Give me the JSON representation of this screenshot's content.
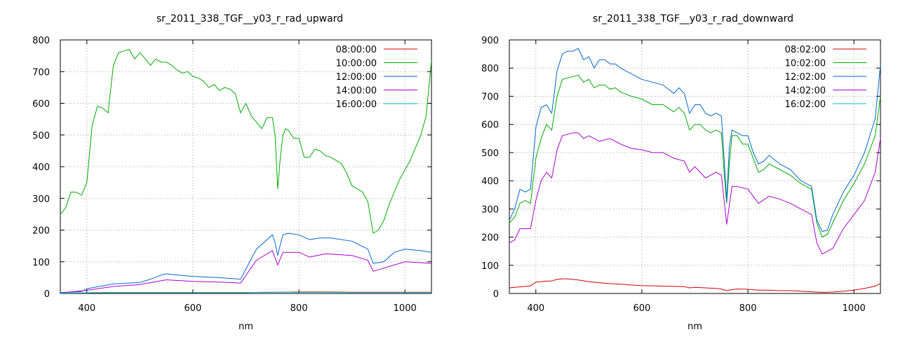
{
  "chart_data": [
    {
      "type": "line",
      "title": "sr_2011_338_TGF__y03_r_rad_upward",
      "xlabel": "nm",
      "ylabel": "",
      "xlim": [
        350,
        1050
      ],
      "ylim": [
        0,
        800
      ],
      "xticks": [
        400,
        600,
        800,
        1000
      ],
      "yticks": [
        0,
        100,
        200,
        300,
        400,
        500,
        600,
        700,
        800
      ],
      "grid": true,
      "legend_position": "top-right",
      "series": [
        {
          "name": "08:00:00",
          "color": "#cc0000",
          "x": [
            350,
            400,
            450,
            500,
            550,
            600,
            650,
            700,
            760,
            800,
            850,
            900,
            950,
            1000,
            1050
          ],
          "y": [
            1,
            2,
            3,
            3,
            3,
            3,
            3,
            3,
            4,
            5,
            5,
            4,
            4,
            4,
            4
          ]
        },
        {
          "name": "10:00:00",
          "color": "#00aa00",
          "x": [
            350,
            360,
            370,
            380,
            390,
            400,
            410,
            420,
            430,
            440,
            450,
            460,
            470,
            480,
            490,
            500,
            510,
            520,
            530,
            540,
            550,
            560,
            570,
            580,
            590,
            600,
            610,
            620,
            630,
            640,
            650,
            660,
            670,
            680,
            690,
            700,
            710,
            720,
            730,
            740,
            750,
            755,
            760,
            765,
            770,
            775,
            780,
            790,
            800,
            810,
            820,
            830,
            840,
            850,
            860,
            870,
            880,
            890,
            900,
            910,
            920,
            930,
            940,
            950,
            960,
            970,
            980,
            990,
            1000,
            1010,
            1020,
            1030,
            1040,
            1050
          ],
          "y": [
            250,
            270,
            320,
            320,
            310,
            350,
            530,
            590,
            585,
            570,
            720,
            760,
            765,
            770,
            740,
            760,
            740,
            720,
            740,
            730,
            730,
            720,
            705,
            695,
            700,
            685,
            680,
            670,
            650,
            660,
            640,
            650,
            645,
            630,
            570,
            600,
            560,
            540,
            520,
            555,
            555,
            500,
            330,
            430,
            500,
            520,
            515,
            490,
            490,
            430,
            430,
            455,
            450,
            435,
            430,
            420,
            410,
            380,
            340,
            330,
            320,
            290,
            190,
            200,
            230,
            280,
            320,
            360,
            390,
            420,
            460,
            500,
            560,
            735
          ]
        },
        {
          "name": "12:00:00",
          "color": "#0066cc",
          "x": [
            350,
            390,
            400,
            450,
            500,
            520,
            540,
            550,
            560,
            600,
            650,
            690,
            720,
            740,
            750,
            755,
            760,
            765,
            770,
            780,
            800,
            820,
            840,
            860,
            900,
            930,
            940,
            960,
            980,
            1000,
            1030,
            1050
          ],
          "y": [
            3,
            6,
            15,
            30,
            35,
            45,
            58,
            62,
            60,
            54,
            50,
            45,
            140,
            170,
            185,
            160,
            120,
            155,
            185,
            190,
            185,
            170,
            175,
            175,
            165,
            140,
            95,
            100,
            130,
            140,
            135,
            130
          ]
        },
        {
          "name": "14:00:00",
          "color": "#aa00cc",
          "x": [
            350,
            400,
            450,
            500,
            550,
            600,
            650,
            690,
            720,
            750,
            760,
            770,
            800,
            820,
            850,
            900,
            930,
            940,
            960,
            1000,
            1050
          ],
          "y": [
            2,
            10,
            22,
            28,
            43,
            38,
            36,
            33,
            105,
            135,
            90,
            130,
            130,
            115,
            125,
            120,
            105,
            70,
            80,
            100,
            95
          ]
        },
        {
          "name": "16:00:00",
          "color": "#00bbcc",
          "x": [
            350,
            400,
            450,
            500,
            550,
            600,
            650,
            700,
            750,
            800,
            850,
            900,
            950,
            1000,
            1050
          ],
          "y": [
            1,
            2,
            3,
            3,
            3,
            3,
            3,
            3,
            4,
            4,
            4,
            3,
            3,
            3,
            3
          ]
        }
      ]
    },
    {
      "type": "line",
      "title": "sr_2011_338_TGF__y03_r_rad_downward",
      "xlabel": "nm",
      "ylabel": "",
      "xlim": [
        350,
        1050
      ],
      "ylim": [
        0,
        900
      ],
      "xticks": [
        400,
        600,
        800,
        1000
      ],
      "yticks": [
        0,
        100,
        200,
        300,
        400,
        500,
        600,
        700,
        800,
        900
      ],
      "grid": true,
      "legend_position": "top-right",
      "series": [
        {
          "name": "08:02:00",
          "color": "#cc0000",
          "x": [
            350,
            360,
            380,
            390,
            400,
            410,
            420,
            430,
            440,
            450,
            460,
            470,
            480,
            500,
            520,
            540,
            560,
            580,
            600,
            620,
            640,
            660,
            680,
            690,
            700,
            720,
            740,
            750,
            760,
            770,
            780,
            800,
            820,
            840,
            860,
            880,
            900,
            920,
            930,
            940,
            960,
            980,
            1000,
            1020,
            1040,
            1050
          ],
          "y": [
            20,
            22,
            25,
            27,
            40,
            42,
            44,
            44,
            50,
            52,
            52,
            50,
            48,
            42,
            38,
            35,
            33,
            30,
            28,
            27,
            26,
            25,
            24,
            20,
            22,
            20,
            18,
            16,
            10,
            14,
            16,
            15,
            12,
            12,
            10,
            10,
            8,
            6,
            5,
            4,
            5,
            8,
            12,
            18,
            26,
            35
          ]
        },
        {
          "name": "10:02:00",
          "color": "#00aa00",
          "x": [
            350,
            360,
            370,
            380,
            390,
            400,
            410,
            420,
            430,
            440,
            450,
            460,
            470,
            480,
            490,
            500,
            510,
            520,
            530,
            540,
            550,
            560,
            580,
            600,
            620,
            640,
            660,
            670,
            680,
            690,
            700,
            710,
            720,
            730,
            740,
            750,
            755,
            760,
            765,
            770,
            780,
            790,
            800,
            810,
            820,
            830,
            840,
            860,
            880,
            900,
            920,
            930,
            940,
            950,
            960,
            980,
            1000,
            1020,
            1040,
            1050
          ],
          "y": [
            250,
            270,
            320,
            330,
            320,
            480,
            550,
            600,
            580,
            700,
            760,
            765,
            770,
            775,
            750,
            760,
            730,
            740,
            740,
            725,
            730,
            715,
            700,
            690,
            670,
            670,
            645,
            660,
            640,
            580,
            600,
            600,
            580,
            570,
            580,
            570,
            430,
            320,
            460,
            560,
            560,
            530,
            530,
            480,
            430,
            440,
            460,
            440,
            420,
            390,
            370,
            250,
            200,
            210,
            250,
            330,
            390,
            460,
            560,
            700
          ]
        },
        {
          "name": "12:02:00",
          "color": "#0066cc",
          "x": [
            350,
            360,
            370,
            380,
            390,
            400,
            410,
            420,
            430,
            440,
            450,
            460,
            470,
            480,
            490,
            500,
            510,
            520,
            530,
            540,
            550,
            560,
            580,
            600,
            620,
            640,
            660,
            670,
            680,
            690,
            700,
            710,
            720,
            730,
            740,
            750,
            755,
            760,
            765,
            770,
            780,
            790,
            800,
            810,
            820,
            830,
            840,
            860,
            880,
            900,
            920,
            930,
            940,
            950,
            960,
            980,
            1000,
            1020,
            1040,
            1050
          ],
          "y": [
            260,
            300,
            370,
            360,
            370,
            590,
            660,
            670,
            640,
            790,
            850,
            860,
            860,
            870,
            830,
            840,
            800,
            830,
            830,
            815,
            815,
            800,
            780,
            760,
            750,
            740,
            710,
            730,
            710,
            640,
            670,
            670,
            640,
            630,
            640,
            630,
            480,
            330,
            520,
            580,
            570,
            560,
            560,
            500,
            460,
            470,
            490,
            460,
            440,
            400,
            380,
            260,
            220,
            225,
            280,
            360,
            420,
            500,
            620,
            810
          ]
        },
        {
          "name": "14:02:00",
          "color": "#aa00cc",
          "x": [
            350,
            360,
            370,
            380,
            390,
            400,
            410,
            420,
            430,
            440,
            450,
            460,
            470,
            480,
            490,
            500,
            520,
            540,
            560,
            580,
            600,
            620,
            640,
            660,
            680,
            690,
            700,
            720,
            740,
            750,
            760,
            770,
            780,
            800,
            820,
            840,
            860,
            880,
            900,
            920,
            930,
            940,
            960,
            980,
            1000,
            1020,
            1040,
            1050
          ],
          "y": [
            180,
            190,
            230,
            230,
            230,
            330,
            400,
            430,
            410,
            510,
            560,
            565,
            570,
            570,
            550,
            560,
            540,
            550,
            530,
            515,
            510,
            500,
            500,
            480,
            470,
            430,
            450,
            410,
            430,
            420,
            245,
            380,
            380,
            370,
            320,
            345,
            335,
            320,
            300,
            280,
            180,
            140,
            160,
            230,
            280,
            330,
            430,
            550
          ]
        },
        {
          "name": "16:02:00",
          "color": "#00bbcc",
          "x": [
            350,
            400,
            450,
            500,
            550,
            600,
            650,
            700,
            750,
            800,
            850,
            900,
            950,
            1000,
            1050
          ],
          "y": [
            null,
            null,
            null,
            null,
            null,
            null,
            null,
            null,
            null,
            null,
            null,
            null,
            null,
            null,
            null
          ]
        }
      ]
    }
  ]
}
